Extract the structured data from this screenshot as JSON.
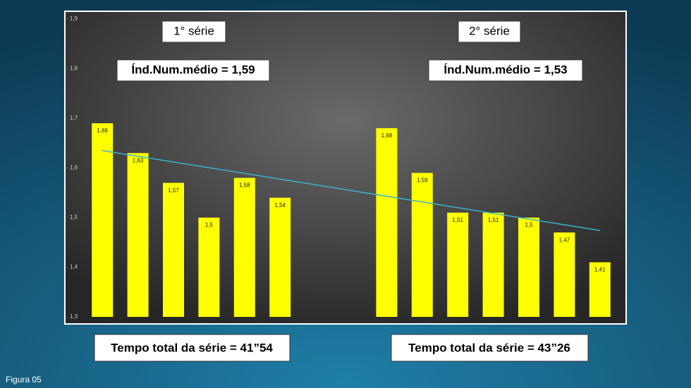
{
  "chart_data": {
    "type": "bar",
    "categories": [
      null,
      null,
      null,
      null,
      null,
      null,
      null,
      null,
      null,
      null,
      null,
      null,
      null,
      null,
      null
    ],
    "values": [
      1.69,
      1.63,
      1.57,
      1.5,
      1.58,
      1.54,
      null,
      null,
      1.68,
      1.59,
      1.51,
      1.51,
      1.5,
      1.47,
      1.41
    ],
    "value_labels": [
      "1,69",
      "1,63",
      "1,57",
      "1,5",
      "1,58",
      "1,54",
      null,
      null,
      "1,68",
      "1,59",
      "1,51",
      "1,51",
      "1,5",
      "1,47",
      "1,41"
    ],
    "color": "#ffff00",
    "ylim": [
      1.3,
      1.9
    ],
    "yticks": [
      {
        "value": 1.3,
        "label": "1,3"
      },
      {
        "value": 1.4,
        "label": "1,4"
      },
      {
        "value": 1.5,
        "label": "1,5"
      },
      {
        "value": 1.6,
        "label": "1,6"
      },
      {
        "value": 1.7,
        "label": "1,7"
      },
      {
        "value": 1.8,
        "label": "1,8"
      },
      {
        "value": 1.9,
        "label": "1,9"
      }
    ],
    "trendline": {
      "color": "#3ab4cc",
      "start": 1.635,
      "end": 1.474
    },
    "annotations": {
      "series1": "1° série",
      "series2": "2° série",
      "index1": "Índ.Num.médio  = 1,59",
      "index2": "Índ.Num.médio  = 1,53",
      "time1": "Tempo total da série = 41”54",
      "time2": "Tempo total da série = 43”26",
      "figure": "Figura 05"
    }
  }
}
